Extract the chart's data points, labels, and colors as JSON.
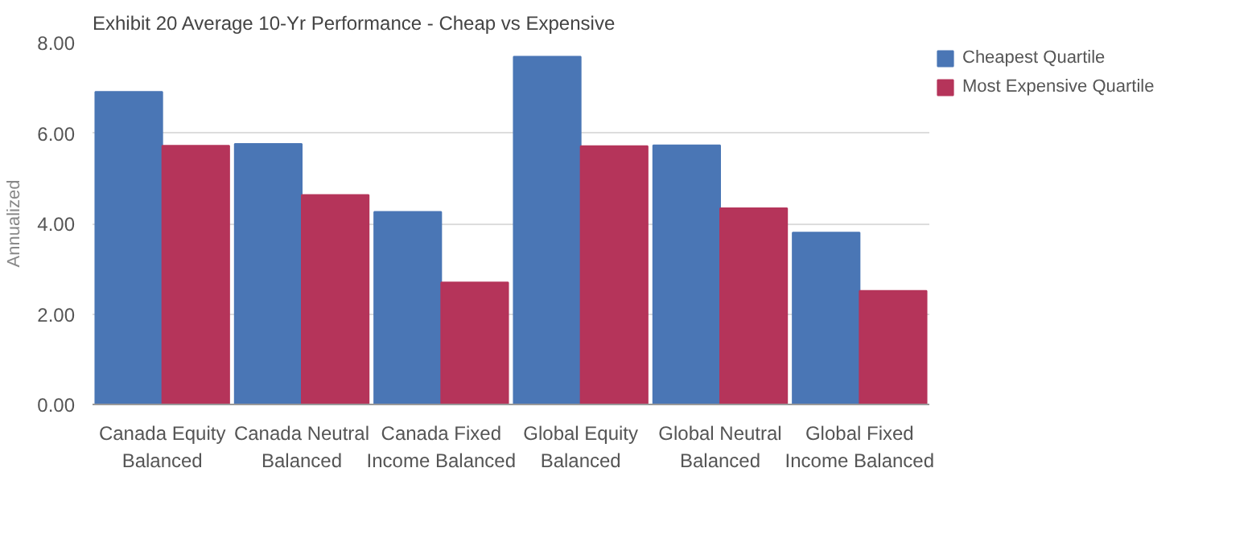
{
  "chart_data": {
    "type": "bar",
    "title": "Exhibit 20 Average 10-Yr Performance - Cheap vs Expensive",
    "ylabel": "Annualized",
    "categories": [
      "Canada Equity Balanced",
      "Canada Neutral Balanced",
      "Canada Fixed Income Balanced",
      "Global Equity Balanced",
      "Global Neutral Balanced",
      "Global Fixed Income Balanced"
    ],
    "series": [
      {
        "name": "Cheapest Quartile",
        "color": "#4a76b5",
        "values": [
          6.91,
          5.76,
          4.26,
          7.69,
          5.73,
          3.8
        ]
      },
      {
        "name": "Most Expensive Quartile",
        "color": "#b5345a",
        "values": [
          5.72,
          4.63,
          2.7,
          5.71,
          4.34,
          2.51
        ]
      }
    ],
    "ylim": [
      0,
      8
    ],
    "yticks": [
      {
        "value": 0,
        "label": "0.00"
      },
      {
        "value": 2,
        "label": "2.00"
      },
      {
        "value": 4,
        "label": "4.00"
      },
      {
        "value": 6,
        "label": "6.00"
      },
      {
        "value": 8,
        "label": "8.00"
      }
    ],
    "grid": "y",
    "legend": "right"
  }
}
